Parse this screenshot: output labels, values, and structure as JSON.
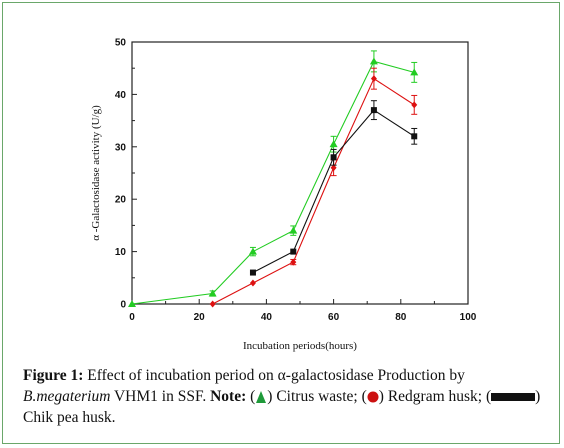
{
  "chart_data": {
    "type": "line",
    "xlabel": "Incubation periods(hours)",
    "ylabel": "α -Galactosidase activity (U/g)",
    "xlim": [
      0,
      100
    ],
    "ylim": [
      0,
      50
    ],
    "xticks": [
      "0",
      "20",
      "40",
      "60",
      "80",
      "100"
    ],
    "yticks": [
      "0",
      "10",
      "20",
      "30",
      "40",
      "50"
    ],
    "grid": false,
    "legend": "none",
    "series": [
      {
        "key": "citrus",
        "color": "#22cc22",
        "marker": "triangle",
        "x": [
          0,
          24,
          36,
          48,
          60,
          72,
          84
        ],
        "y": [
          0,
          2,
          10,
          14,
          30.5,
          46.3,
          44.2
        ],
        "err": [
          0,
          0.5,
          0.8,
          0.9,
          1.5,
          2.0,
          1.9
        ]
      },
      {
        "key": "redgram",
        "color": "#dd1111",
        "marker": "diamond",
        "x": [
          24,
          36,
          48,
          60,
          72,
          84
        ],
        "y": [
          0,
          4,
          8,
          26,
          43,
          38
        ],
        "err": [
          0,
          0,
          0.5,
          1.5,
          2.0,
          1.8
        ]
      },
      {
        "key": "chikpea",
        "color": "#111111",
        "marker": "square",
        "x": [
          36,
          48,
          60,
          72,
          84
        ],
        "y": [
          6,
          10,
          28,
          37,
          32
        ],
        "err": [
          0,
          0,
          1.5,
          1.8,
          1.5
        ]
      }
    ]
  },
  "caption": {
    "label": "Figure 1:",
    "text1": " Effect of incubation period on α-galactosidase Production by ",
    "species": "B.megaterium",
    "text2": " VHM1 in SSF. ",
    "note_label": "Note:",
    "item1": " Citrus waste; ",
    "item2": " Redgram husk; ",
    "item3": " Chik pea husk."
  }
}
